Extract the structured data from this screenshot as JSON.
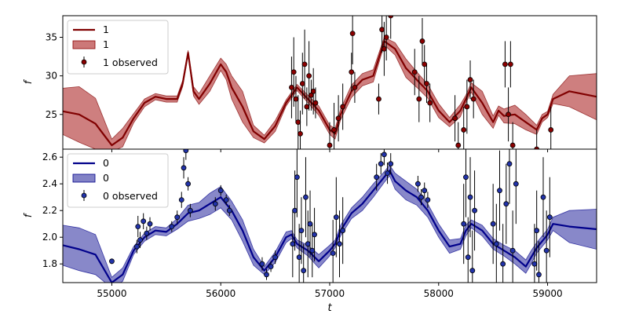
{
  "chart_data": {
    "type": "line",
    "xlabel": "t",
    "xlim": [
      54550,
      59450
    ],
    "x_ticks": [
      "55000",
      "56000",
      "57000",
      "58000",
      "59000"
    ],
    "panels": [
      {
        "name": "top",
        "ylabel": "f",
        "ylim": [
          20.5,
          37.8
        ],
        "y_ticks": [
          "25",
          "30",
          "35"
        ],
        "colors": {
          "line": "#800000",
          "band": "#b03030",
          "marker": "#8b0000"
        },
        "legend": {
          "position": "upper-left",
          "line": "1",
          "band": "1",
          "points": "1 observed"
        },
        "model": {
          "t": [
            54550,
            54700,
            54850,
            55000,
            55100,
            55200,
            55300,
            55400,
            55500,
            55600,
            55650,
            55700,
            55750,
            55800,
            55900,
            56000,
            56050,
            56100,
            56200,
            56300,
            56400,
            56500,
            56600,
            56700,
            56800,
            56900,
            57000,
            57050,
            57100,
            57200,
            57300,
            57400,
            57500,
            57600,
            57700,
            57800,
            57900,
            58000,
            58100,
            58200,
            58250,
            58300,
            58400,
            58500,
            58550,
            58600,
            58700,
            58800,
            58900,
            58950,
            59000,
            59050,
            59200,
            59450
          ],
          "mean": [
            25.4,
            25.0,
            23.8,
            21.0,
            22.0,
            24.5,
            26.5,
            27.3,
            27.0,
            27.0,
            29.0,
            33.0,
            28.0,
            27.0,
            29.0,
            31.5,
            30.5,
            28.5,
            26.0,
            22.8,
            21.8,
            23.5,
            26.5,
            28.5,
            27.0,
            25.5,
            23.0,
            22.5,
            25.0,
            28.0,
            29.5,
            30.0,
            34.5,
            33.5,
            31.0,
            29.5,
            28.0,
            25.5,
            24.0,
            25.5,
            27.0,
            28.5,
            26.5,
            24.0,
            25.5,
            24.8,
            25.0,
            24.0,
            23.0,
            24.5,
            25.0,
            27.0,
            28.0,
            27.3
          ],
          "band": [
            3.0,
            3.6,
            3.3,
            0.8,
            1.2,
            0.6,
            0.5,
            0.4,
            0.4,
            0.4,
            0.4,
            0.3,
            0.6,
            0.7,
            1.0,
            0.8,
            1.0,
            1.5,
            2.0,
            0.8,
            0.5,
            0.7,
            0.4,
            0.4,
            0.5,
            0.6,
            0.6,
            0.7,
            0.7,
            0.8,
            0.8,
            0.8,
            0.5,
            0.8,
            1.2,
            1.0,
            0.9,
            0.9,
            0.6,
            0.8,
            0.5,
            0.6,
            1.5,
            0.8,
            0.6,
            0.9,
            1.2,
            1.0,
            0.6,
            0.5,
            0.4,
            0.6,
            2.0,
            3.0
          ]
        },
        "observed": [
          {
            "t": 56650,
            "y": 28.5,
            "e": 4.0
          },
          {
            "t": 56670,
            "y": 30.5,
            "e": 4.5
          },
          {
            "t": 56690,
            "y": 27.0,
            "e": 3.0
          },
          {
            "t": 56710,
            "y": 24.0,
            "e": 3.5
          },
          {
            "t": 56730,
            "y": 22.5,
            "e": 3.0
          },
          {
            "t": 56750,
            "y": 29.0,
            "e": 4.0
          },
          {
            "t": 56770,
            "y": 31.5,
            "e": 4.5
          },
          {
            "t": 56790,
            "y": 26.0,
            "e": 2.5
          },
          {
            "t": 56810,
            "y": 30.0,
            "e": 4.5
          },
          {
            "t": 56830,
            "y": 27.5,
            "e": 2.0
          },
          {
            "t": 56850,
            "y": 28.0,
            "e": 3.0
          },
          {
            "t": 56870,
            "y": 26.5,
            "e": 2.0
          },
          {
            "t": 57000,
            "y": 21.0,
            "e": 3.0
          },
          {
            "t": 57040,
            "y": 23.0,
            "e": 3.5
          },
          {
            "t": 57080,
            "y": 24.5,
            "e": 3.0
          },
          {
            "t": 57120,
            "y": 26.0,
            "e": 3.0
          },
          {
            "t": 57200,
            "y": 30.5,
            "e": 2.5
          },
          {
            "t": 57210,
            "y": 35.5,
            "e": 4.0
          },
          {
            "t": 57230,
            "y": 28.5,
            "e": 2.0
          },
          {
            "t": 57450,
            "y": 27.0,
            "e": 2.0
          },
          {
            "t": 57480,
            "y": 36.0,
            "e": 3.0
          },
          {
            "t": 57500,
            "y": 33.5,
            "e": 3.5
          },
          {
            "t": 57520,
            "y": 35.0,
            "e": 3.0
          },
          {
            "t": 57560,
            "y": 37.8,
            "e": 3.0
          },
          {
            "t": 57780,
            "y": 30.5,
            "e": 3.0
          },
          {
            "t": 57820,
            "y": 27.0,
            "e": 3.0
          },
          {
            "t": 57850,
            "y": 34.5,
            "e": 3.0
          },
          {
            "t": 57870,
            "y": 31.5,
            "e": 2.5
          },
          {
            "t": 57890,
            "y": 29.0,
            "e": 2.5
          },
          {
            "t": 57920,
            "y": 26.5,
            "e": 2.5
          },
          {
            "t": 58150,
            "y": 24.5,
            "e": 3.0
          },
          {
            "t": 58180,
            "y": 21.0,
            "e": 3.0
          },
          {
            "t": 58230,
            "y": 23.0,
            "e": 3.0
          },
          {
            "t": 58260,
            "y": 26.0,
            "e": 3.5
          },
          {
            "t": 58290,
            "y": 29.5,
            "e": 2.5
          },
          {
            "t": 58320,
            "y": 27.0,
            "e": 2.5
          },
          {
            "t": 58610,
            "y": 31.5,
            "e": 3.0
          },
          {
            "t": 58640,
            "y": 25.0,
            "e": 3.5
          },
          {
            "t": 58660,
            "y": 31.5,
            "e": 3.0
          },
          {
            "t": 58680,
            "y": 21.0,
            "e": 3.0
          },
          {
            "t": 58900,
            "y": 20.5,
            "e": 2.5
          },
          {
            "t": 59030,
            "y": 23.0,
            "e": 3.0
          }
        ]
      },
      {
        "name": "bottom",
        "ylabel": "f",
        "ylim": [
          1.66,
          2.66
        ],
        "y_ticks": [
          "1.8",
          "2.0",
          "2.2",
          "2.4",
          "2.6"
        ],
        "colors": {
          "line": "#00008b",
          "band": "#3f3fa8",
          "marker": "#2233aa"
        },
        "legend": {
          "position": "upper-left",
          "line": "0",
          "band": "0",
          "points": "0 observed"
        },
        "model": {
          "t": [
            54550,
            54700,
            54850,
            55000,
            55100,
            55200,
            55300,
            55400,
            55500,
            55600,
            55700,
            55800,
            55900,
            56000,
            56100,
            56200,
            56300,
            56400,
            56500,
            56600,
            56650,
            56700,
            56800,
            56900,
            57000,
            57050,
            57100,
            57200,
            57300,
            57400,
            57500,
            57550,
            57600,
            57700,
            57800,
            57900,
            58000,
            58100,
            58200,
            58250,
            58300,
            58400,
            58500,
            58600,
            58700,
            58800,
            58850,
            58900,
            59000,
            59050,
            59200,
            59450
          ],
          "mean": [
            1.94,
            1.91,
            1.87,
            1.66,
            1.72,
            1.9,
            2.0,
            2.05,
            2.04,
            2.1,
            2.18,
            2.2,
            2.25,
            2.3,
            2.2,
            2.05,
            1.85,
            1.75,
            1.85,
            2.0,
            2.02,
            1.95,
            1.9,
            1.82,
            1.9,
            1.95,
            2.05,
            2.18,
            2.25,
            2.35,
            2.45,
            2.5,
            2.42,
            2.35,
            2.3,
            2.2,
            2.05,
            1.93,
            1.95,
            2.05,
            2.1,
            2.05,
            1.95,
            1.9,
            1.85,
            1.78,
            1.85,
            1.92,
            2.02,
            2.1,
            2.08,
            2.06
          ],
          "band": [
            0.15,
            0.16,
            0.15,
            0.04,
            0.05,
            0.03,
            0.03,
            0.03,
            0.03,
            0.04,
            0.06,
            0.06,
            0.08,
            0.08,
            0.07,
            0.08,
            0.06,
            0.03,
            0.04,
            0.04,
            0.03,
            0.03,
            0.04,
            0.05,
            0.04,
            0.03,
            0.04,
            0.04,
            0.05,
            0.05,
            0.04,
            0.04,
            0.06,
            0.07,
            0.06,
            0.05,
            0.05,
            0.05,
            0.04,
            0.04,
            0.03,
            0.04,
            0.04,
            0.04,
            0.05,
            0.05,
            0.05,
            0.04,
            0.04,
            0.05,
            0.12,
            0.15
          ]
        },
        "observed": [
          {
            "t": 55000,
            "y": 1.82,
            "e": 0.02
          },
          {
            "t": 55230,
            "y": 1.93,
            "e": 0.05
          },
          {
            "t": 55240,
            "y": 2.08,
            "e": 0.08
          },
          {
            "t": 55260,
            "y": 1.98,
            "e": 0.06
          },
          {
            "t": 55290,
            "y": 2.12,
            "e": 0.06
          },
          {
            "t": 55320,
            "y": 2.03,
            "e": 0.05
          },
          {
            "t": 55350,
            "y": 2.1,
            "e": 0.05
          },
          {
            "t": 55550,
            "y": 2.08,
            "e": 0.04
          },
          {
            "t": 55600,
            "y": 2.15,
            "e": 0.05
          },
          {
            "t": 55640,
            "y": 2.28,
            "e": 0.06
          },
          {
            "t": 55660,
            "y": 2.52,
            "e": 0.08
          },
          {
            "t": 55680,
            "y": 2.65,
            "e": 0.07
          },
          {
            "t": 55700,
            "y": 2.4,
            "e": 0.05
          },
          {
            "t": 55720,
            "y": 2.2,
            "e": 0.05
          },
          {
            "t": 55950,
            "y": 2.25,
            "e": 0.05
          },
          {
            "t": 56000,
            "y": 2.35,
            "e": 0.04
          },
          {
            "t": 56050,
            "y": 2.28,
            "e": 0.04
          },
          {
            "t": 56080,
            "y": 2.2,
            "e": 0.04
          },
          {
            "t": 56380,
            "y": 1.8,
            "e": 0.05
          },
          {
            "t": 56420,
            "y": 1.72,
            "e": 0.04
          },
          {
            "t": 56460,
            "y": 1.78,
            "e": 0.04
          },
          {
            "t": 56500,
            "y": 1.85,
            "e": 0.05
          },
          {
            "t": 56660,
            "y": 1.95,
            "e": 0.25
          },
          {
            "t": 56680,
            "y": 2.2,
            "e": 0.3
          },
          {
            "t": 56700,
            "y": 2.45,
            "e": 0.3
          },
          {
            "t": 56720,
            "y": 1.85,
            "e": 0.25
          },
          {
            "t": 56740,
            "y": 2.05,
            "e": 0.25
          },
          {
            "t": 56760,
            "y": 1.75,
            "e": 0.2
          },
          {
            "t": 56780,
            "y": 2.3,
            "e": 0.3
          },
          {
            "t": 56800,
            "y": 1.95,
            "e": 0.25
          },
          {
            "t": 56820,
            "y": 2.1,
            "e": 0.25
          },
          {
            "t": 56840,
            "y": 1.9,
            "e": 0.2
          },
          {
            "t": 56860,
            "y": 2.02,
            "e": 0.2
          },
          {
            "t": 57030,
            "y": 1.88,
            "e": 0.25
          },
          {
            "t": 57060,
            "y": 2.15,
            "e": 0.3
          },
          {
            "t": 57090,
            "y": 1.95,
            "e": 0.25
          },
          {
            "t": 57120,
            "y": 2.05,
            "e": 0.25
          },
          {
            "t": 57430,
            "y": 2.45,
            "e": 0.1
          },
          {
            "t": 57470,
            "y": 2.55,
            "e": 0.08
          },
          {
            "t": 57500,
            "y": 2.62,
            "e": 0.08
          },
          {
            "t": 57530,
            "y": 2.48,
            "e": 0.08
          },
          {
            "t": 57560,
            "y": 2.55,
            "e": 0.08
          },
          {
            "t": 57810,
            "y": 2.4,
            "e": 0.06
          },
          {
            "t": 57840,
            "y": 2.3,
            "e": 0.06
          },
          {
            "t": 57870,
            "y": 2.35,
            "e": 0.06
          },
          {
            "t": 57900,
            "y": 2.28,
            "e": 0.06
          },
          {
            "t": 58230,
            "y": 2.1,
            "e": 0.3
          },
          {
            "t": 58250,
            "y": 2.45,
            "e": 0.3
          },
          {
            "t": 58270,
            "y": 1.85,
            "e": 0.3
          },
          {
            "t": 58290,
            "y": 2.3,
            "e": 0.3
          },
          {
            "t": 58310,
            "y": 1.75,
            "e": 0.3
          },
          {
            "t": 58330,
            "y": 2.2,
            "e": 0.3
          },
          {
            "t": 58500,
            "y": 2.1,
            "e": 0.3
          },
          {
            "t": 58530,
            "y": 1.95,
            "e": 0.3
          },
          {
            "t": 58560,
            "y": 2.35,
            "e": 0.3
          },
          {
            "t": 58590,
            "y": 1.8,
            "e": 0.3
          },
          {
            "t": 58620,
            "y": 2.25,
            "e": 0.3
          },
          {
            "t": 58650,
            "y": 2.55,
            "e": 0.3
          },
          {
            "t": 58680,
            "y": 1.9,
            "e": 0.3
          },
          {
            "t": 58710,
            "y": 2.4,
            "e": 0.3
          },
          {
            "t": 58880,
            "y": 1.8,
            "e": 0.3
          },
          {
            "t": 58900,
            "y": 2.05,
            "e": 0.3
          },
          {
            "t": 58920,
            "y": 1.72,
            "e": 0.25
          },
          {
            "t": 58960,
            "y": 2.3,
            "e": 0.3
          },
          {
            "t": 58990,
            "y": 1.9,
            "e": 0.3
          },
          {
            "t": 59020,
            "y": 2.15,
            "e": 0.3
          }
        ]
      }
    ]
  }
}
